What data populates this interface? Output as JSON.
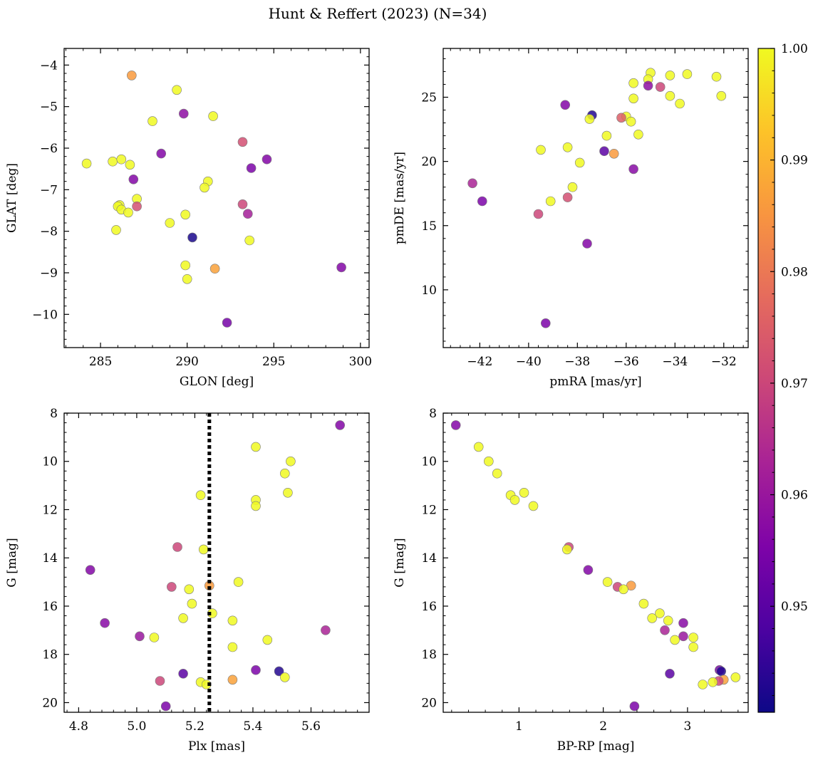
{
  "figure": {
    "title": "Hunt & Reffert (2023) (N=34)"
  },
  "colorbar": {
    "colormap": "plasma",
    "vmin": 0.9405,
    "vmax": 1.0,
    "ticks": [
      0.95,
      0.96,
      0.97,
      0.98,
      0.99,
      1.0
    ],
    "tick_labels": [
      "0.95",
      "0.96",
      "0.97",
      "0.98",
      "0.99",
      "1.00"
    ]
  },
  "chart_data": [
    {
      "type": "scatter",
      "panel": "top-left",
      "xlabel": "GLON [deg]",
      "ylabel": "GLAT [deg]",
      "xlim": [
        282.9,
        300.5
      ],
      "ylim": [
        -10.8,
        -3.6
      ],
      "invert_y": false,
      "xticks": [
        285,
        290,
        295,
        300
      ],
      "xtick_labels": [
        "285",
        "290",
        "295",
        "300"
      ],
      "yticks": [
        -10,
        -9,
        -8,
        -7,
        -6,
        -5,
        -4
      ],
      "ytick_labels": [
        "−10",
        "−9",
        "−8",
        "−7",
        "−6",
        "−5",
        "−4"
      ],
      "points": [
        {
          "x": 286.8,
          "y": -4.25,
          "c": 0.986
        },
        {
          "x": 289.4,
          "y": -4.6,
          "c": 1.0
        },
        {
          "x": 289.8,
          "y": -5.17,
          "c": 0.958
        },
        {
          "x": 291.5,
          "y": -5.23,
          "c": 1.0
        },
        {
          "x": 288.0,
          "y": -5.35,
          "c": 1.0
        },
        {
          "x": 293.2,
          "y": -5.85,
          "c": 0.972
        },
        {
          "x": 288.5,
          "y": -6.13,
          "c": 0.956
        },
        {
          "x": 294.6,
          "y": -6.27,
          "c": 0.956
        },
        {
          "x": 284.2,
          "y": -6.37,
          "c": 1.0
        },
        {
          "x": 285.7,
          "y": -6.32,
          "c": 1.0
        },
        {
          "x": 286.2,
          "y": -6.27,
          "c": 1.0
        },
        {
          "x": 286.7,
          "y": -6.4,
          "c": 1.0
        },
        {
          "x": 293.7,
          "y": -6.48,
          "c": 0.955
        },
        {
          "x": 286.9,
          "y": -6.75,
          "c": 0.956
        },
        {
          "x": 291.2,
          "y": -6.8,
          "c": 1.0
        },
        {
          "x": 291.0,
          "y": -6.95,
          "c": 1.0
        },
        {
          "x": 287.1,
          "y": -7.22,
          "c": 1.0
        },
        {
          "x": 293.2,
          "y": -7.35,
          "c": 0.97
        },
        {
          "x": 286.1,
          "y": -7.37,
          "c": 1.0
        },
        {
          "x": 286.0,
          "y": -7.4,
          "c": 1.0
        },
        {
          "x": 287.1,
          "y": -7.4,
          "c": 0.972
        },
        {
          "x": 286.2,
          "y": -7.48,
          "c": 1.0
        },
        {
          "x": 286.6,
          "y": -7.55,
          "c": 1.0
        },
        {
          "x": 293.5,
          "y": -7.58,
          "c": 0.962
        },
        {
          "x": 289.9,
          "y": -7.6,
          "c": 1.0
        },
        {
          "x": 289.0,
          "y": -7.8,
          "c": 1.0
        },
        {
          "x": 285.9,
          "y": -7.97,
          "c": 1.0
        },
        {
          "x": 290.3,
          "y": -8.15,
          "c": 0.942
        },
        {
          "x": 293.6,
          "y": -8.22,
          "c": 1.0
        },
        {
          "x": 289.9,
          "y": -8.82,
          "c": 1.0
        },
        {
          "x": 298.9,
          "y": -8.87,
          "c": 0.956
        },
        {
          "x": 291.6,
          "y": -8.9,
          "c": 0.987
        },
        {
          "x": 290.0,
          "y": -9.15,
          "c": 1.0
        },
        {
          "x": 292.3,
          "y": -10.2,
          "c": 0.954
        }
      ]
    },
    {
      "type": "scatter",
      "panel": "top-right",
      "xlabel": "pmRA [mas/yr]",
      "ylabel": "pmDE [mas/yr]",
      "xlim": [
        -43.5,
        -31.0
      ],
      "ylim": [
        5.5,
        28.8
      ],
      "invert_y": false,
      "xticks": [
        -42,
        -40,
        -38,
        -36,
        -34,
        -32
      ],
      "xtick_labels": [
        "−42",
        "−40",
        "−38",
        "−36",
        "−34",
        "−32"
      ],
      "yticks": [
        10,
        15,
        20,
        25
      ],
      "ytick_labels": [
        "10",
        "15",
        "20",
        "25"
      ],
      "points": [
        {
          "x": -35.0,
          "y": 26.9,
          "c": 1.0
        },
        {
          "x": -33.5,
          "y": 26.8,
          "c": 1.0
        },
        {
          "x": -34.2,
          "y": 26.7,
          "c": 1.0
        },
        {
          "x": -32.3,
          "y": 26.6,
          "c": 1.0
        },
        {
          "x": -35.1,
          "y": 26.4,
          "c": 1.0
        },
        {
          "x": -35.7,
          "y": 26.1,
          "c": 1.0
        },
        {
          "x": -35.1,
          "y": 25.9,
          "c": 0.958
        },
        {
          "x": -34.6,
          "y": 25.8,
          "c": 0.97
        },
        {
          "x": -34.2,
          "y": 25.1,
          "c": 1.0
        },
        {
          "x": -32.1,
          "y": 25.1,
          "c": 1.0
        },
        {
          "x": -35.7,
          "y": 24.9,
          "c": 1.0
        },
        {
          "x": -33.8,
          "y": 24.5,
          "c": 1.0
        },
        {
          "x": -38.5,
          "y": 24.4,
          "c": 0.956
        },
        {
          "x": -37.4,
          "y": 23.6,
          "c": 0.943
        },
        {
          "x": -36.0,
          "y": 23.5,
          "c": 1.0
        },
        {
          "x": -36.2,
          "y": 23.4,
          "c": 0.975
        },
        {
          "x": -37.5,
          "y": 23.3,
          "c": 1.0
        },
        {
          "x": -35.8,
          "y": 23.1,
          "c": 1.0
        },
        {
          "x": -35.5,
          "y": 22.1,
          "c": 1.0
        },
        {
          "x": -36.8,
          "y": 22.0,
          "c": 1.0
        },
        {
          "x": -38.4,
          "y": 21.1,
          "c": 1.0
        },
        {
          "x": -39.5,
          "y": 20.9,
          "c": 1.0
        },
        {
          "x": -36.9,
          "y": 20.8,
          "c": 0.95
        },
        {
          "x": -36.5,
          "y": 20.6,
          "c": 0.986
        },
        {
          "x": -37.9,
          "y": 19.9,
          "c": 1.0
        },
        {
          "x": -35.7,
          "y": 19.4,
          "c": 0.957
        },
        {
          "x": -42.3,
          "y": 18.3,
          "c": 0.963
        },
        {
          "x": -38.2,
          "y": 18.0,
          "c": 1.0
        },
        {
          "x": -38.4,
          "y": 17.2,
          "c": 0.972
        },
        {
          "x": -41.9,
          "y": 16.9,
          "c": 0.955
        },
        {
          "x": -39.1,
          "y": 16.9,
          "c": 1.0
        },
        {
          "x": -39.6,
          "y": 15.9,
          "c": 0.97
        },
        {
          "x": -37.6,
          "y": 13.6,
          "c": 0.956
        },
        {
          "x": -39.3,
          "y": 7.4,
          "c": 0.955
        }
      ]
    },
    {
      "type": "scatter",
      "panel": "bottom-left",
      "xlabel": "Plx [mas]",
      "ylabel": "G [mag]",
      "xlim": [
        4.75,
        5.8
      ],
      "ylim": [
        20.4,
        8.0
      ],
      "invert_y": true,
      "xticks": [
        4.8,
        5.0,
        5.2,
        5.4,
        5.6
      ],
      "xtick_labels": [
        "4.8",
        "5.0",
        "5.2",
        "5.4",
        "5.6"
      ],
      "yticks": [
        8,
        10,
        12,
        14,
        16,
        18,
        20
      ],
      "ytick_labels": [
        "8",
        "10",
        "12",
        "14",
        "16",
        "18",
        "20"
      ],
      "vline": {
        "x": 5.25,
        "style": "dotted"
      },
      "points": [
        {
          "x": 5.7,
          "y": 8.5,
          "c": 0.956
        },
        {
          "x": 5.41,
          "y": 9.4,
          "c": 1.0
        },
        {
          "x": 5.53,
          "y": 10.0,
          "c": 1.0
        },
        {
          "x": 5.51,
          "y": 10.5,
          "c": 1.0
        },
        {
          "x": 5.52,
          "y": 11.3,
          "c": 1.0
        },
        {
          "x": 5.22,
          "y": 11.4,
          "c": 1.0
        },
        {
          "x": 5.41,
          "y": 11.6,
          "c": 1.0
        },
        {
          "x": 5.41,
          "y": 11.85,
          "c": 1.0
        },
        {
          "x": 5.14,
          "y": 13.55,
          "c": 0.97
        },
        {
          "x": 5.23,
          "y": 13.65,
          "c": 1.0
        },
        {
          "x": 4.84,
          "y": 14.5,
          "c": 0.956
        },
        {
          "x": 5.35,
          "y": 15.0,
          "c": 1.0
        },
        {
          "x": 5.25,
          "y": 15.15,
          "c": 0.986
        },
        {
          "x": 5.12,
          "y": 15.2,
          "c": 0.97
        },
        {
          "x": 5.18,
          "y": 15.3,
          "c": 1.0
        },
        {
          "x": 5.19,
          "y": 15.9,
          "c": 1.0
        },
        {
          "x": 5.26,
          "y": 16.3,
          "c": 1.0
        },
        {
          "x": 5.16,
          "y": 16.5,
          "c": 1.0
        },
        {
          "x": 5.33,
          "y": 16.6,
          "c": 1.0
        },
        {
          "x": 4.89,
          "y": 16.7,
          "c": 0.957
        },
        {
          "x": 5.65,
          "y": 17.0,
          "c": 0.963
        },
        {
          "x": 5.01,
          "y": 17.25,
          "c": 0.96
        },
        {
          "x": 5.06,
          "y": 17.3,
          "c": 1.0
        },
        {
          "x": 5.45,
          "y": 17.4,
          "c": 1.0
        },
        {
          "x": 5.33,
          "y": 17.7,
          "c": 1.0
        },
        {
          "x": 5.41,
          "y": 18.65,
          "c": 0.955
        },
        {
          "x": 5.49,
          "y": 18.7,
          "c": 0.943
        },
        {
          "x": 5.16,
          "y": 18.8,
          "c": 0.95
        },
        {
          "x": 5.51,
          "y": 18.95,
          "c": 1.0
        },
        {
          "x": 5.33,
          "y": 19.05,
          "c": 0.987
        },
        {
          "x": 5.08,
          "y": 19.1,
          "c": 0.97
        },
        {
          "x": 5.22,
          "y": 19.15,
          "c": 1.0
        },
        {
          "x": 5.24,
          "y": 19.25,
          "c": 1.0
        },
        {
          "x": 5.1,
          "y": 20.15,
          "c": 0.955
        }
      ]
    },
    {
      "type": "scatter",
      "panel": "bottom-right",
      "xlabel": "BP-RP [mag]",
      "ylabel": "G [mag]",
      "xlim": [
        0.1,
        3.72
      ],
      "ylim": [
        20.4,
        8.0
      ],
      "invert_y": true,
      "xticks": [
        1,
        2,
        3
      ],
      "xtick_labels": [
        "1",
        "2",
        "3"
      ],
      "yticks": [
        8,
        10,
        12,
        14,
        16,
        18,
        20
      ],
      "ytick_labels": [
        "8",
        "10",
        "12",
        "14",
        "16",
        "18",
        "20"
      ],
      "points": [
        {
          "x": 0.25,
          "y": 8.5,
          "c": 0.956
        },
        {
          "x": 0.52,
          "y": 9.4,
          "c": 1.0
        },
        {
          "x": 0.64,
          "y": 10.0,
          "c": 1.0
        },
        {
          "x": 0.74,
          "y": 10.5,
          "c": 1.0
        },
        {
          "x": 1.06,
          "y": 11.3,
          "c": 1.0
        },
        {
          "x": 0.9,
          "y": 11.4,
          "c": 1.0
        },
        {
          "x": 0.95,
          "y": 11.6,
          "c": 1.0
        },
        {
          "x": 1.17,
          "y": 11.85,
          "c": 1.0
        },
        {
          "x": 1.59,
          "y": 13.55,
          "c": 0.97
        },
        {
          "x": 1.57,
          "y": 13.65,
          "c": 1.0
        },
        {
          "x": 1.82,
          "y": 14.5,
          "c": 0.956
        },
        {
          "x": 2.05,
          "y": 15.0,
          "c": 1.0
        },
        {
          "x": 2.33,
          "y": 15.15,
          "c": 0.986
        },
        {
          "x": 2.17,
          "y": 15.2,
          "c": 0.97
        },
        {
          "x": 2.24,
          "y": 15.3,
          "c": 1.0
        },
        {
          "x": 2.48,
          "y": 15.9,
          "c": 1.0
        },
        {
          "x": 2.67,
          "y": 16.3,
          "c": 1.0
        },
        {
          "x": 2.58,
          "y": 16.5,
          "c": 1.0
        },
        {
          "x": 2.77,
          "y": 16.6,
          "c": 1.0
        },
        {
          "x": 2.95,
          "y": 16.7,
          "c": 0.957
        },
        {
          "x": 2.73,
          "y": 17.0,
          "c": 0.963
        },
        {
          "x": 2.95,
          "y": 17.25,
          "c": 0.96
        },
        {
          "x": 3.07,
          "y": 17.3,
          "c": 1.0
        },
        {
          "x": 2.85,
          "y": 17.4,
          "c": 1.0
        },
        {
          "x": 3.07,
          "y": 17.7,
          "c": 1.0
        },
        {
          "x": 3.38,
          "y": 18.65,
          "c": 0.955
        },
        {
          "x": 3.4,
          "y": 18.7,
          "c": 0.943
        },
        {
          "x": 2.79,
          "y": 18.8,
          "c": 0.95
        },
        {
          "x": 3.57,
          "y": 18.95,
          "c": 1.0
        },
        {
          "x": 3.43,
          "y": 19.05,
          "c": 0.987
        },
        {
          "x": 3.37,
          "y": 19.1,
          "c": 0.97
        },
        {
          "x": 3.3,
          "y": 19.15,
          "c": 1.0
        },
        {
          "x": 3.18,
          "y": 19.25,
          "c": 1.0
        },
        {
          "x": 2.37,
          "y": 20.15,
          "c": 0.955
        }
      ]
    }
  ]
}
